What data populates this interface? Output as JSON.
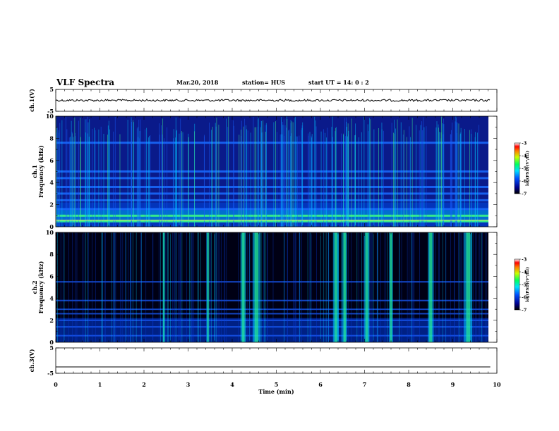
{
  "header": {
    "title": "VLF Spectra",
    "date": "Mar.20, 2018",
    "station": "station= HUS",
    "start": "start  UT =   14: 0  : 2"
  },
  "colors": {
    "background": "#ffffff",
    "spectrogram_dark": "#000014",
    "trace": "#000000"
  },
  "chart_data": [
    {
      "type": "line",
      "panel": "ch1_waveform",
      "ylabel": "ch.1(V)",
      "ylim": [
        -5,
        5
      ],
      "yticks": [
        "5",
        "-5"
      ],
      "x": [
        0,
        9.85
      ],
      "series": [
        {
          "values": [
            0,
            0
          ]
        }
      ]
    },
    {
      "type": "heatmap",
      "panel": "ch1_spectrogram",
      "ylabel": "ch.1\nFrequency (kHz)",
      "ylim": [
        0,
        10
      ],
      "yticks": [
        "10",
        "8",
        "6",
        "4",
        "2",
        "0"
      ],
      "xlim": [
        0,
        10
      ],
      "colorbar": {
        "label": "log(PSD)(V²/Hz)",
        "ticks": [
          "-3",
          "-4",
          "-5",
          "-6",
          "-7"
        ],
        "range": [
          -7,
          -3
        ]
      },
      "bands_khz": [
        0.5,
        1.0,
        1.6,
        2.4,
        3.0,
        3.6,
        4.4,
        5.0,
        7.6
      ]
    },
    {
      "type": "heatmap",
      "panel": "ch2_spectrogram",
      "ylabel": "ch.2\nFrequency (kHz)",
      "ylim": [
        0,
        10
      ],
      "yticks": [
        "10",
        "8",
        "6",
        "4",
        "2",
        "0"
      ],
      "xlim": [
        0,
        10
      ],
      "colorbar": {
        "label": "log(PSD)(V²/Hz)",
        "ticks": [
          "-3",
          "-4",
          "-5",
          "-6",
          "-7"
        ],
        "range": [
          -7,
          -3
        ]
      },
      "bursts_min": [
        2.45,
        3.45,
        4.25,
        4.55,
        6.35,
        6.55,
        7.05,
        7.6,
        8.5,
        9.35
      ]
    },
    {
      "type": "line",
      "panel": "ch3_waveform",
      "ylabel": "ch.3(V)",
      "ylim": [
        -5,
        5
      ],
      "yticks": [
        "5",
        "-5"
      ],
      "x": [
        0,
        9.85
      ],
      "series": [
        {
          "values": [
            -2.5,
            -2.5
          ]
        }
      ]
    }
  ],
  "xaxis": {
    "label": "Time (min)",
    "ticks": [
      "0",
      "1",
      "2",
      "3",
      "4",
      "5",
      "6",
      "7",
      "8",
      "9",
      "10"
    ]
  }
}
